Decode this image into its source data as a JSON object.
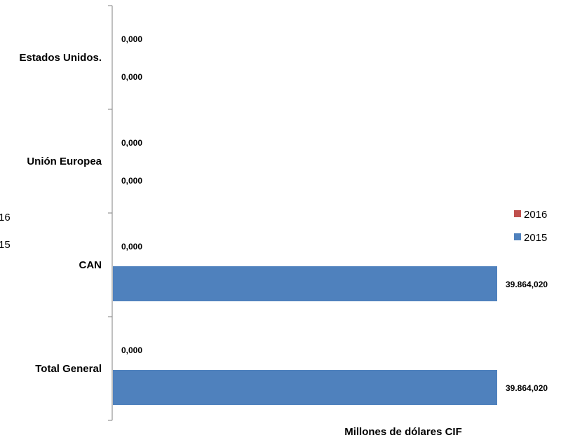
{
  "chart_data": {
    "type": "bar",
    "orientation": "horizontal",
    "categories": [
      "Estados Unidos.",
      "Unión Europea",
      "CAN",
      "Total General"
    ],
    "series": [
      {
        "name": "2016",
        "color": "#C0504D",
        "values": [
          0,
          0,
          0,
          0
        ],
        "labels": [
          "0,000",
          "0,000",
          "0,000",
          "0,000"
        ]
      },
      {
        "name": "2015",
        "color": "#4F81BD",
        "values": [
          0,
          0,
          39.86402,
          39.86402
        ],
        "labels": [
          "0,000",
          "0,000",
          "39.864,020",
          "39.864,020"
        ]
      }
    ],
    "title": "",
    "xlabel": "Millones de dólares CIF",
    "ylabel": "",
    "xlim": [
      0,
      39.86402
    ],
    "legend": {
      "position": "right",
      "entries": [
        "2016",
        "2015"
      ]
    },
    "grid": false
  },
  "clipped_legend_fragments": [
    "16",
    "15"
  ]
}
